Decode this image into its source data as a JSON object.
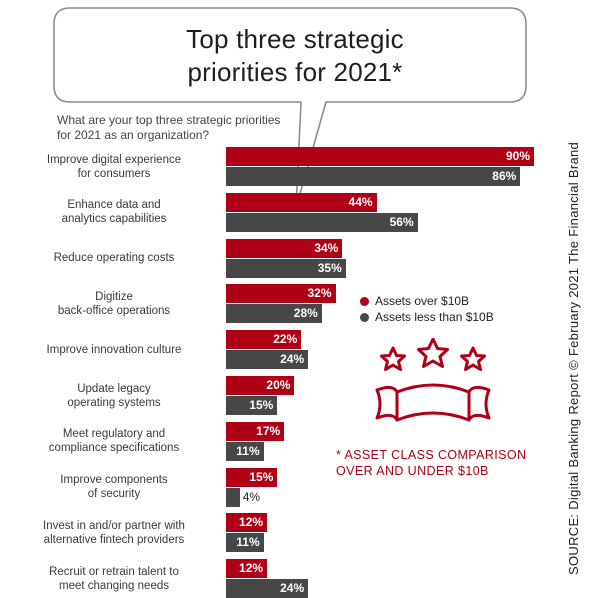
{
  "title_lines": [
    "Top three strategic",
    "priorities for 2021*"
  ],
  "question_lines": [
    "What are your top three strategic priorities",
    "for 2021 as an organization?"
  ],
  "legend": [
    {
      "label": "Assets over $10B",
      "color": "#b00016"
    },
    {
      "label": "Assets less than $10B",
      "color": "#474747"
    }
  ],
  "note_lines": [
    "* ASSET CLASS COMPARISON",
    "OVER AND UNDER $10B"
  ],
  "source": "SOURCE: Digital Banking Report © February 2021 The Financial Brand",
  "icon": "three-stars-ribbon-icon",
  "chart_data": {
    "type": "bar",
    "orientation": "horizontal",
    "categories": [
      [
        "Improve digital experience",
        "for consumers"
      ],
      [
        "Enhance data and",
        "analytics capabilities"
      ],
      [
        "Reduce operating costs"
      ],
      [
        "Digitize",
        "back-office operations"
      ],
      [
        "Improve innovation culture"
      ],
      [
        "Update legacy",
        "operating systems"
      ],
      [
        "Meet regulatory and",
        "compliance specifications"
      ],
      [
        "Improve components",
        "of security"
      ],
      [
        "Invest in and/or partner with",
        "alternative fintech providers"
      ],
      [
        "Recruit or retrain talent to",
        "meet changing needs"
      ]
    ],
    "series": [
      {
        "name": "Assets over $10B",
        "color": "#b00016",
        "values": [
          90,
          44,
          34,
          32,
          22,
          20,
          17,
          15,
          12,
          12
        ]
      },
      {
        "name": "Assets less than $10B",
        "color": "#474747",
        "values": [
          86,
          56,
          35,
          28,
          24,
          15,
          11,
          4,
          11,
          24
        ]
      }
    ],
    "value_suffix": "%",
    "xlim": [
      0,
      90
    ],
    "grid": false,
    "legend_position": "right"
  }
}
